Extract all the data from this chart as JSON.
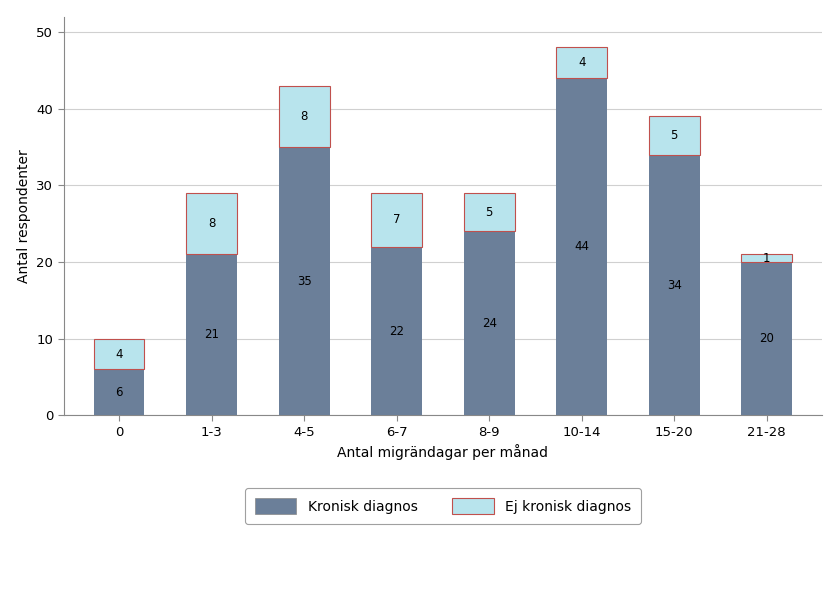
{
  "categories": [
    "0",
    "1-3",
    "4-5",
    "6-7",
    "8-9",
    "10-14",
    "15-20",
    "21-28"
  ],
  "kronisk": [
    6,
    21,
    35,
    22,
    24,
    44,
    34,
    20
  ],
  "ej_kronisk": [
    4,
    8,
    8,
    7,
    5,
    4,
    5,
    1
  ],
  "kronisk_color": "#6b7f99",
  "ej_kronisk_color": "#b8e4ed",
  "bar_edge_color": "#c0504d",
  "xlabel": "Antal migrändagar per månad",
  "ylabel": "Antal respondenter",
  "ylim": [
    0,
    52
  ],
  "yticks": [
    0,
    10,
    20,
    30,
    40,
    50
  ],
  "legend_kronisk": "Kronisk diagnos",
  "legend_ej_kronisk": "Ej kronisk diagnos",
  "plot_bg": "#ffffff",
  "figure_bg": "#ffffff",
  "outer_border_color": "#aaaaaa",
  "grid_color": "#d0d0d0",
  "label_fontsize": 10,
  "tick_fontsize": 9.5,
  "bar_label_fontsize": 8.5,
  "bar_width": 0.55
}
